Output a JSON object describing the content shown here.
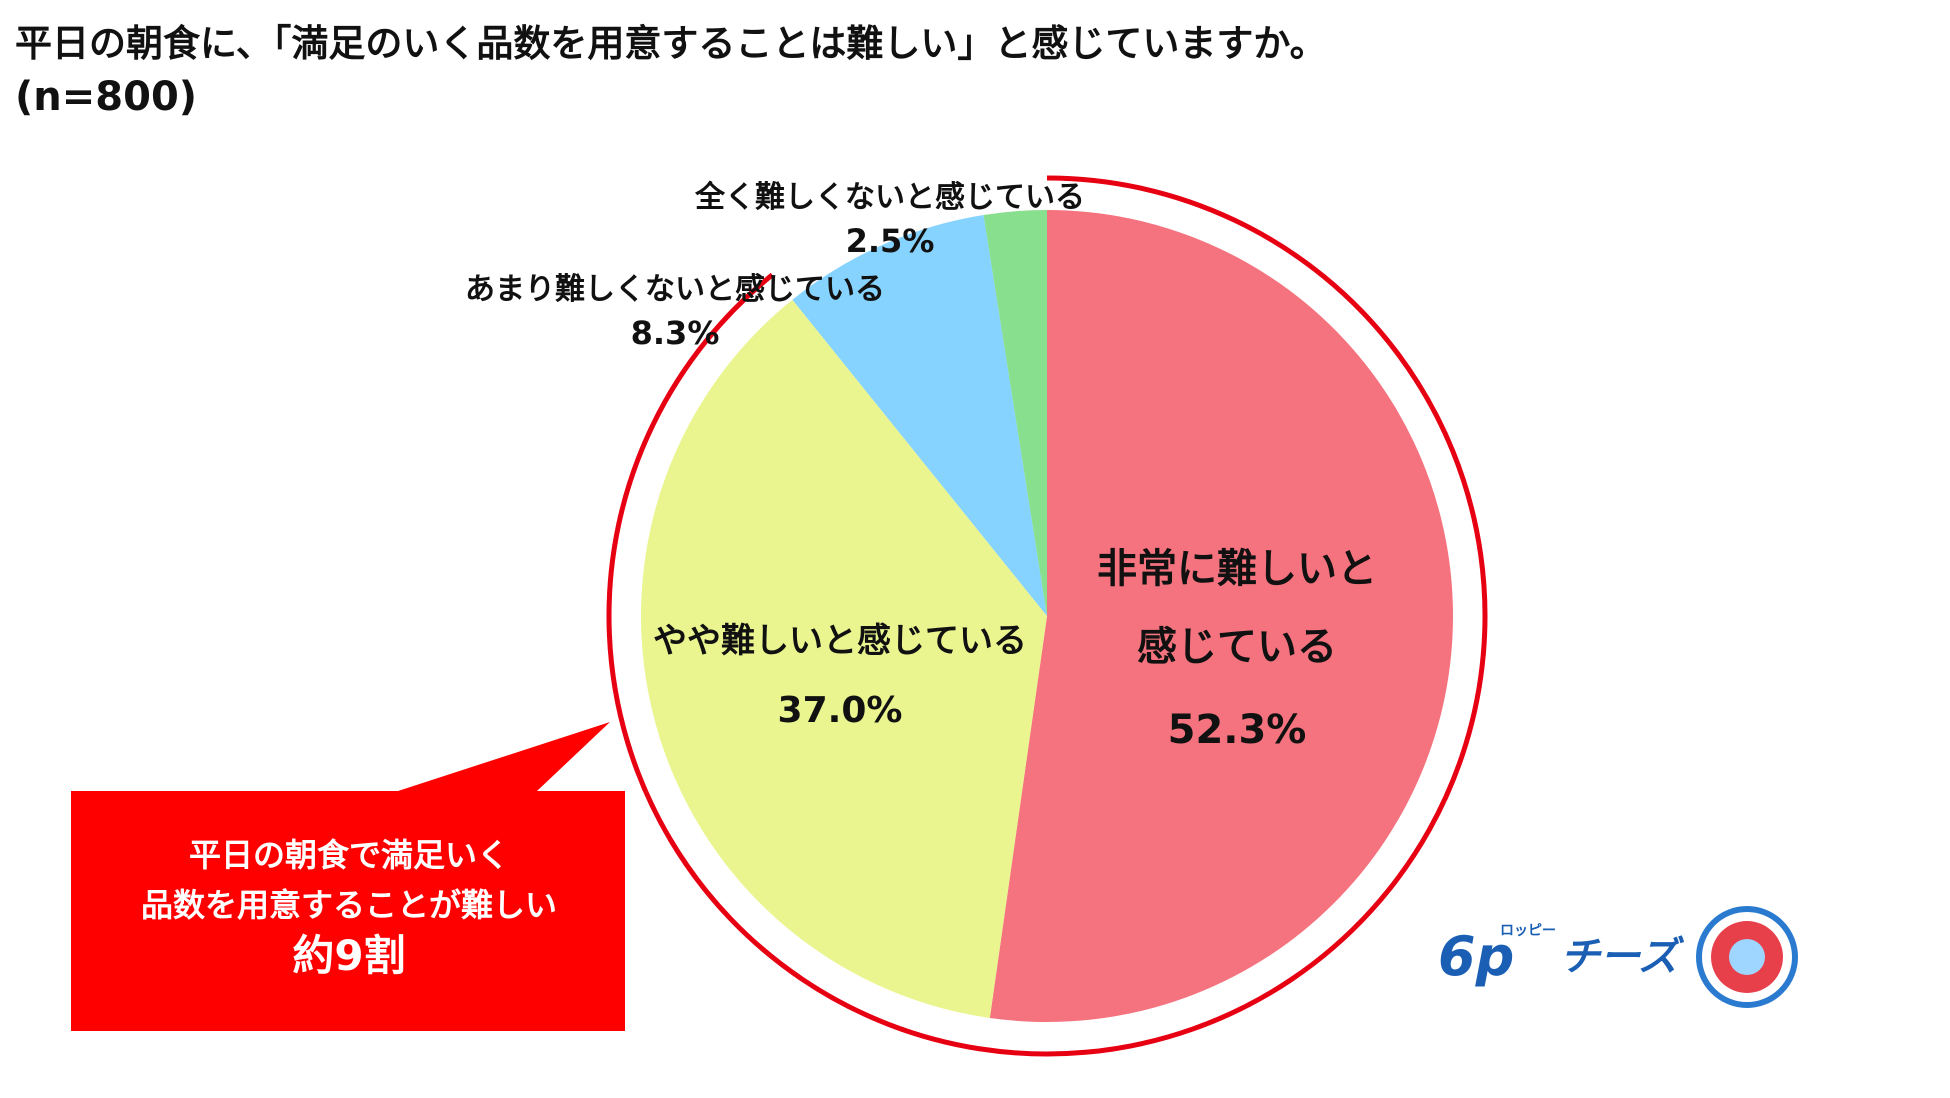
{
  "chart_data": {
    "type": "pie",
    "title": "平日の朝食に、「満足のいく品数を用意することは難しい」と感じていますか。",
    "subtitle": "(n=800)",
    "categories": [
      "非常に難しいと感じている",
      "やや難しいと感じている",
      "あまり難しくないと感じている",
      "全く難しくないと感じている"
    ],
    "values": [
      52.3,
      37.0,
      8.3,
      2.5
    ],
    "value_labels": [
      "52.3%",
      "37.0%",
      "8.3%",
      "2.5%"
    ],
    "colors": [
      "#f4737e",
      "#eaf590",
      "#86d3ff",
      "#88df8e"
    ],
    "callout": [
      "平日の朝食で満足いく",
      "品数を用意することが難しい",
      "約9割"
    ],
    "logo": [
      "6p",
      "ロッピー",
      "チーズ"
    ]
  }
}
